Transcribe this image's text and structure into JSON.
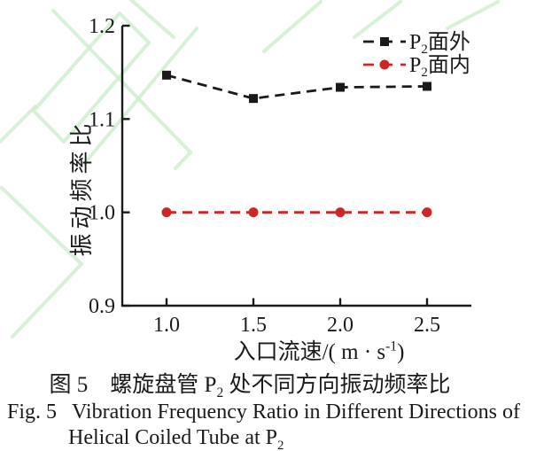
{
  "figure": {
    "caption_cn_parts": [
      {
        "t": "图 5　螺旋盘管 P"
      },
      {
        "t": "2",
        "sub": true
      },
      {
        "t": " 处不同方向振动频率比"
      }
    ],
    "caption_en_label": "Fig. 5",
    "caption_en_text": "Vibration Frequency Ratio in Different Directions of",
    "caption_en_line2_parts": [
      {
        "t": "Helical Coiled Tube at P"
      },
      {
        "t": "2",
        "sub": true
      }
    ]
  },
  "chart_data": {
    "type": "line",
    "title": "",
    "x": [
      1.0,
      1.5,
      2.0,
      2.5
    ],
    "series": [
      {
        "id": "p2-out-of-plane",
        "name": "P2面外",
        "label_parts": [
          {
            "t": "P"
          },
          {
            "t": "2",
            "sub": true
          },
          {
            "t": "面外"
          }
        ],
        "values": [
          1.147,
          1.122,
          1.134,
          1.135
        ],
        "color": "#1a1a1a",
        "marker": "square",
        "linestyle": "dashed"
      },
      {
        "id": "p2-in-plane",
        "name": "P2面内",
        "label_parts": [
          {
            "t": "P"
          },
          {
            "t": "2",
            "sub": true
          },
          {
            "t": "面内"
          }
        ],
        "values": [
          1.0,
          1.0,
          1.0,
          1.0
        ],
        "color": "#cc2626",
        "marker": "circle",
        "linestyle": "dashed"
      }
    ],
    "xlabel_parts": [
      {
        "t": "入口流速/( m · s"
      },
      {
        "t": "-1",
        "sup": true
      },
      {
        "t": ")"
      }
    ],
    "ylabel": "振动频率比",
    "xticks": [
      1.0,
      1.5,
      2.0,
      2.5
    ],
    "xtick_labels": [
      "1.0",
      "1.5",
      "2.0",
      "2.5"
    ],
    "yticks": [
      0.9,
      1.0,
      1.1,
      1.2
    ],
    "ytick_labels": [
      "0.9",
      "1.0",
      "1.1",
      "1.2"
    ],
    "xlim": [
      0.745,
      2.755
    ],
    "ylim": [
      0.9,
      1.2
    ],
    "grid": false,
    "legend_position": "top-right",
    "axis_color": "#1a1a1a"
  },
  "watermark": {
    "color": "#cfeecf"
  }
}
